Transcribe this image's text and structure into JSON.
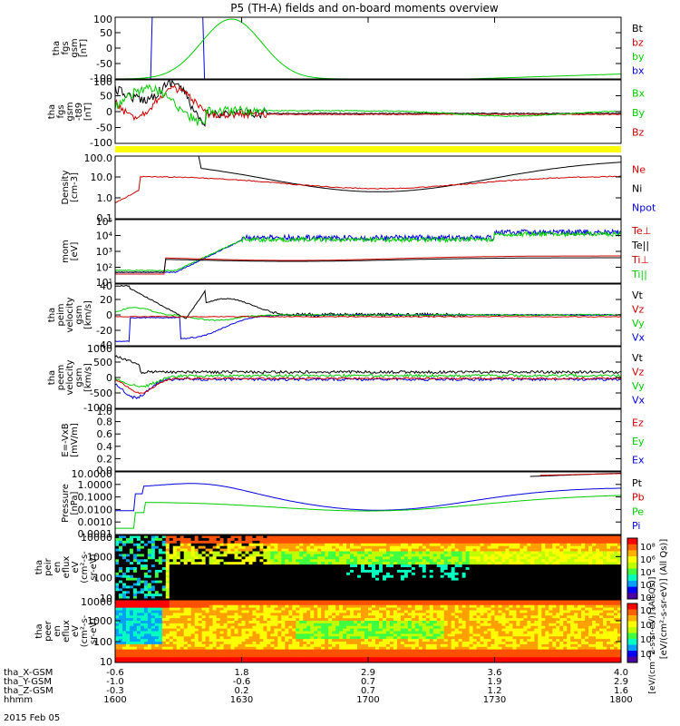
{
  "title": "P5 (TH-A) fields and on-board moments overview",
  "colors": {
    "black": "#000000",
    "red": "#cc0000",
    "green": "#00cc00",
    "blue": "#0000dd",
    "yellow": "#ffff00"
  },
  "chart_data": [
    {
      "type": "line",
      "name": "fgs-gsm",
      "ylabel": [
        "tha",
        "fgs",
        "gsm",
        "[nT]"
      ],
      "yticks": [
        "100",
        "50",
        "0",
        "-50",
        "-100"
      ],
      "ylim": [
        -100,
        100
      ],
      "legend": [
        "Bt",
        "bz",
        "by",
        "bx"
      ]
    },
    {
      "type": "line",
      "name": "fgs-gsm-t89",
      "ylabel": [
        "tha",
        "fgs",
        "gsm",
        "-t89",
        "[nT]"
      ],
      "yticks": [
        "100",
        "50",
        "0",
        "-50",
        "-100"
      ],
      "ylim": [
        -120,
        120
      ],
      "legend": [
        "Bx",
        "By",
        "Bz"
      ]
    },
    {
      "type": "line",
      "name": "density",
      "scale": "log",
      "ylabel": [
        "Density",
        "[cm-3]"
      ],
      "yticks": [
        "100.0",
        "10.0",
        "1.0",
        "0.1"
      ],
      "ylim": [
        0.05,
        300
      ],
      "legend": [
        "Ne",
        "Ni",
        "Npot"
      ]
    },
    {
      "type": "line",
      "name": "temperature",
      "scale": "log",
      "ylabel": [
        "mom",
        "[eV]"
      ],
      "yticks": [
        "10⁵",
        "10⁴",
        "10³",
        "10²",
        "10¹"
      ],
      "ylim": [
        10,
        100000
      ],
      "legend": [
        "Te⊥",
        "Te||",
        "Ti⊥",
        "Ti||"
      ]
    },
    {
      "type": "line",
      "name": "peim-velocity",
      "ylabel": [
        "tha",
        "peim",
        "velocity",
        "gsm",
        "[km/s]"
      ],
      "yticks": [
        "40",
        "20",
        "0",
        "-20",
        "-40"
      ],
      "ylim": [
        -40,
        40
      ],
      "legend": [
        "Vt",
        "Vz",
        "Vy",
        "Vx"
      ]
    },
    {
      "type": "line",
      "name": "peem-velocity",
      "ylabel": [
        "tha",
        "peem",
        "velocity",
        "gsm",
        "[km/s]"
      ],
      "yticks": [
        "1000",
        "500",
        "0",
        "-500",
        "-1000"
      ],
      "ylim": [
        -1000,
        1000
      ],
      "legend": [
        "Vt",
        "Vz",
        "Vy",
        "Vx"
      ]
    },
    {
      "type": "line",
      "name": "efield",
      "ylabel": [
        "E=-VxB",
        "[mV/m]"
      ],
      "yticks": [
        "1.0",
        "0.8",
        "0.6",
        "0.4",
        "0.2",
        "0.0"
      ],
      "ylim": [
        0,
        1
      ],
      "legend": [
        "Ez",
        "Ey",
        "Ex"
      ]
    },
    {
      "type": "line",
      "name": "pressure",
      "scale": "log",
      "ylabel": [
        "Pressure",
        "[nPa]"
      ],
      "yticks": [
        "10.0000",
        "1.0000",
        "0.1000",
        "0.0100",
        "0.0010",
        "0.0001"
      ],
      "ylim": [
        0.0001,
        30
      ],
      "legend": [
        "Pt",
        "Pb",
        "Pe",
        "Pi"
      ]
    },
    {
      "type": "heatmap",
      "name": "peir-en-eflux",
      "ylabel": [
        "tha",
        "peir",
        "en",
        "eflux",
        "eV",
        "(cm²-s-",
        "sr-eV)"
      ],
      "yticks": [
        "10000",
        "1000",
        "100",
        "10"
      ]
    },
    {
      "type": "heatmap",
      "name": "peer-en-eflux",
      "ylabel": [
        "tha",
        "peer",
        "en",
        "eflux",
        "eV",
        "(cm²-s-",
        "sr-eV)"
      ],
      "yticks": [
        "10000",
        "1000",
        "100",
        "10"
      ]
    }
  ],
  "colorbar": {
    "label": "[eV/(cm²-s-sr-eV)] (All Qs)]",
    "label2": "[eV/(cm^2-s-sr-eV)] (All Qs)]",
    "ticks_top": [
      "10⁸",
      "10⁶",
      "10⁴",
      "10²",
      "10⁰"
    ],
    "ticks_bottom": [
      "10⁸",
      "10⁶",
      "10⁴",
      "10²"
    ]
  },
  "time_axis": {
    "rows": [
      {
        "label": "tha_X-GSM",
        "values": [
          "-0.6",
          "1.8",
          "2.9",
          "3.6",
          "4.0"
        ]
      },
      {
        "label": "tha_Y-GSM",
        "values": [
          "-1.0",
          "-0.6",
          "0.7",
          "1.9",
          "2.9"
        ]
      },
      {
        "label": "tha_Z-GSM",
        "values": [
          "-0.3",
          "0.2",
          "0.7",
          "1.2",
          "1.6"
        ]
      },
      {
        "label": "hhmm",
        "values": [
          "1600",
          "1630",
          "1700",
          "1730",
          "1800"
        ]
      }
    ],
    "date": "2015 Feb 05"
  }
}
